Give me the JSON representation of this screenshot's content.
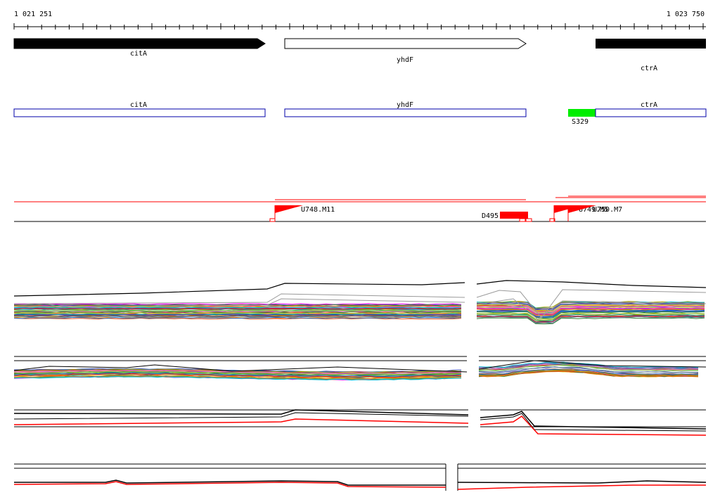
{
  "ruler": {
    "start_label": "1 021 251",
    "end_label": "1 023 750"
  },
  "genes": [
    {
      "name": "citA",
      "strand": "+",
      "fill": "#000000"
    },
    {
      "name": "yhdF",
      "strand": "+",
      "fill": "#ffffff"
    },
    {
      "name": "ctrA",
      "strand": "+",
      "fill": "#000000"
    }
  ],
  "annotations": [
    {
      "name": "citA",
      "color": "#0000aa"
    },
    {
      "name": "yhdF",
      "color": "#0000aa"
    },
    {
      "name": "ctrA",
      "color": "#0000aa"
    }
  ],
  "feature": {
    "name": "S329",
    "color": "#00ee00"
  },
  "markers": [
    {
      "label": "U748.M11",
      "color": "#ff0000"
    },
    {
      "label": "D495",
      "color": "#ff0000"
    },
    {
      "label": "U749.M5",
      "color": "#ff0000"
    },
    {
      "label": "U750.M7",
      "color": "#ff0000"
    }
  ],
  "colors": {
    "axis": "#000000",
    "highlight": "#ff0000",
    "track_palette": [
      "#e41a1c",
      "#377eb8",
      "#4daf4a",
      "#984ea3",
      "#ff7f00",
      "#a6a600",
      "#a65628",
      "#f781bf",
      "#00bcd4",
      "#8bc34a",
      "#3f51b5",
      "#ff00ff",
      "#009688",
      "#795548",
      "#ff5722",
      "#607d8b",
      "#cddc39",
      "#1565c0",
      "#ad1457",
      "#2e7d32"
    ]
  }
}
